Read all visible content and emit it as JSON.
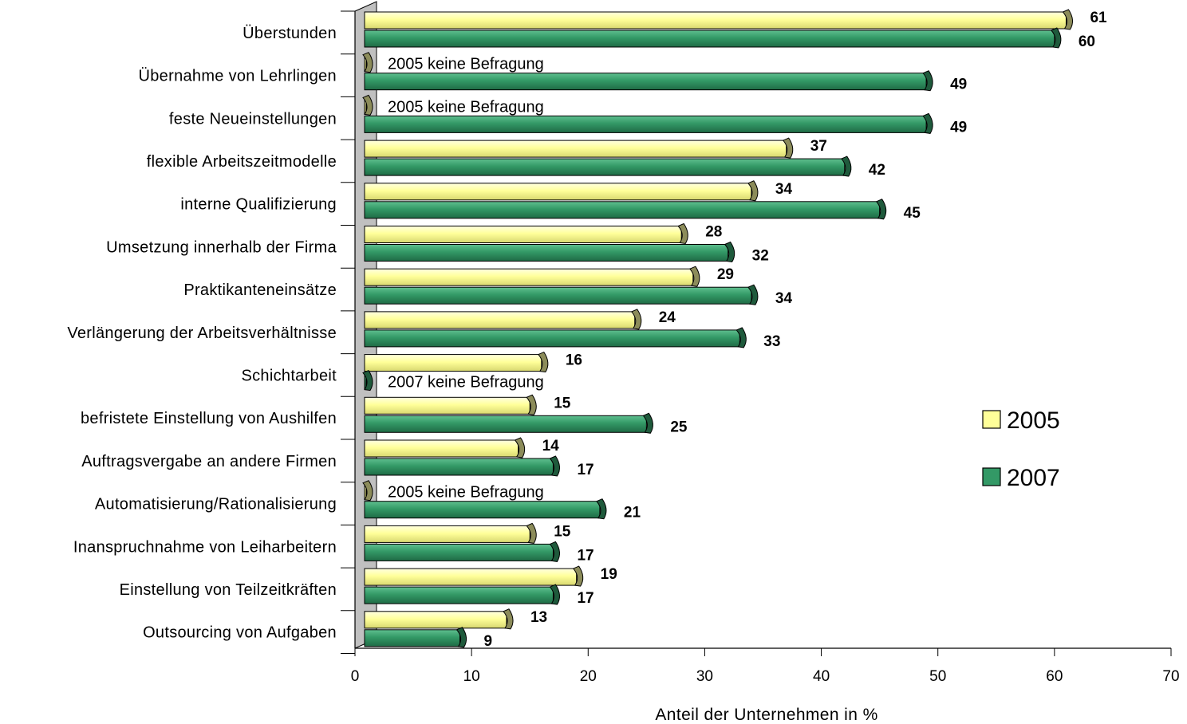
{
  "chart_data": {
    "type": "bar",
    "orientation": "horizontal",
    "categories": [
      "Überstunden",
      "Übernahme von Lehrlingen",
      "feste Neueinstellungen",
      "flexible Arbeitszeitmodelle",
      "interne Qualifizierung",
      "Umsetzung innerhalb der Firma",
      "Praktikanteneinsätze",
      "Verlängerung der Arbeitsverhältnisse",
      "Schichtarbeit",
      "befristete Einstellung von Aushilfen",
      "Auftragsvergabe an andere Firmen",
      "Automatisierung/Rationalisierung",
      "Inanspruchnahme von Leiharbeitern",
      "Einstellung von Teilzeitkräften",
      "Outsourcing von Aufgaben"
    ],
    "series": [
      {
        "name": "2005",
        "color": "#ffff99",
        "values": [
          61,
          null,
          null,
          37,
          34,
          28,
          29,
          24,
          16,
          15,
          14,
          null,
          15,
          19,
          13
        ]
      },
      {
        "name": "2007",
        "color": "#339966",
        "values": [
          60,
          49,
          49,
          42,
          45,
          32,
          34,
          33,
          null,
          25,
          17,
          21,
          17,
          17,
          9
        ]
      }
    ],
    "notes": [
      {
        "category_index": 1,
        "series_index": 0,
        "text": "2005 keine Befragung"
      },
      {
        "category_index": 2,
        "series_index": 0,
        "text": "2005 keine Befragung"
      },
      {
        "category_index": 8,
        "series_index": 1,
        "text": "2007 keine Befragung"
      },
      {
        "category_index": 11,
        "series_index": 0,
        "text": "2005 keine Befragung"
      }
    ],
    "xlabel": "Anteil der Unternehmen in %",
    "ylabel": "",
    "xlim": [
      0,
      70
    ],
    "xticks": [
      0,
      10,
      20,
      30,
      40,
      50,
      60,
      70
    ],
    "grid": false,
    "legend_position": "right"
  }
}
